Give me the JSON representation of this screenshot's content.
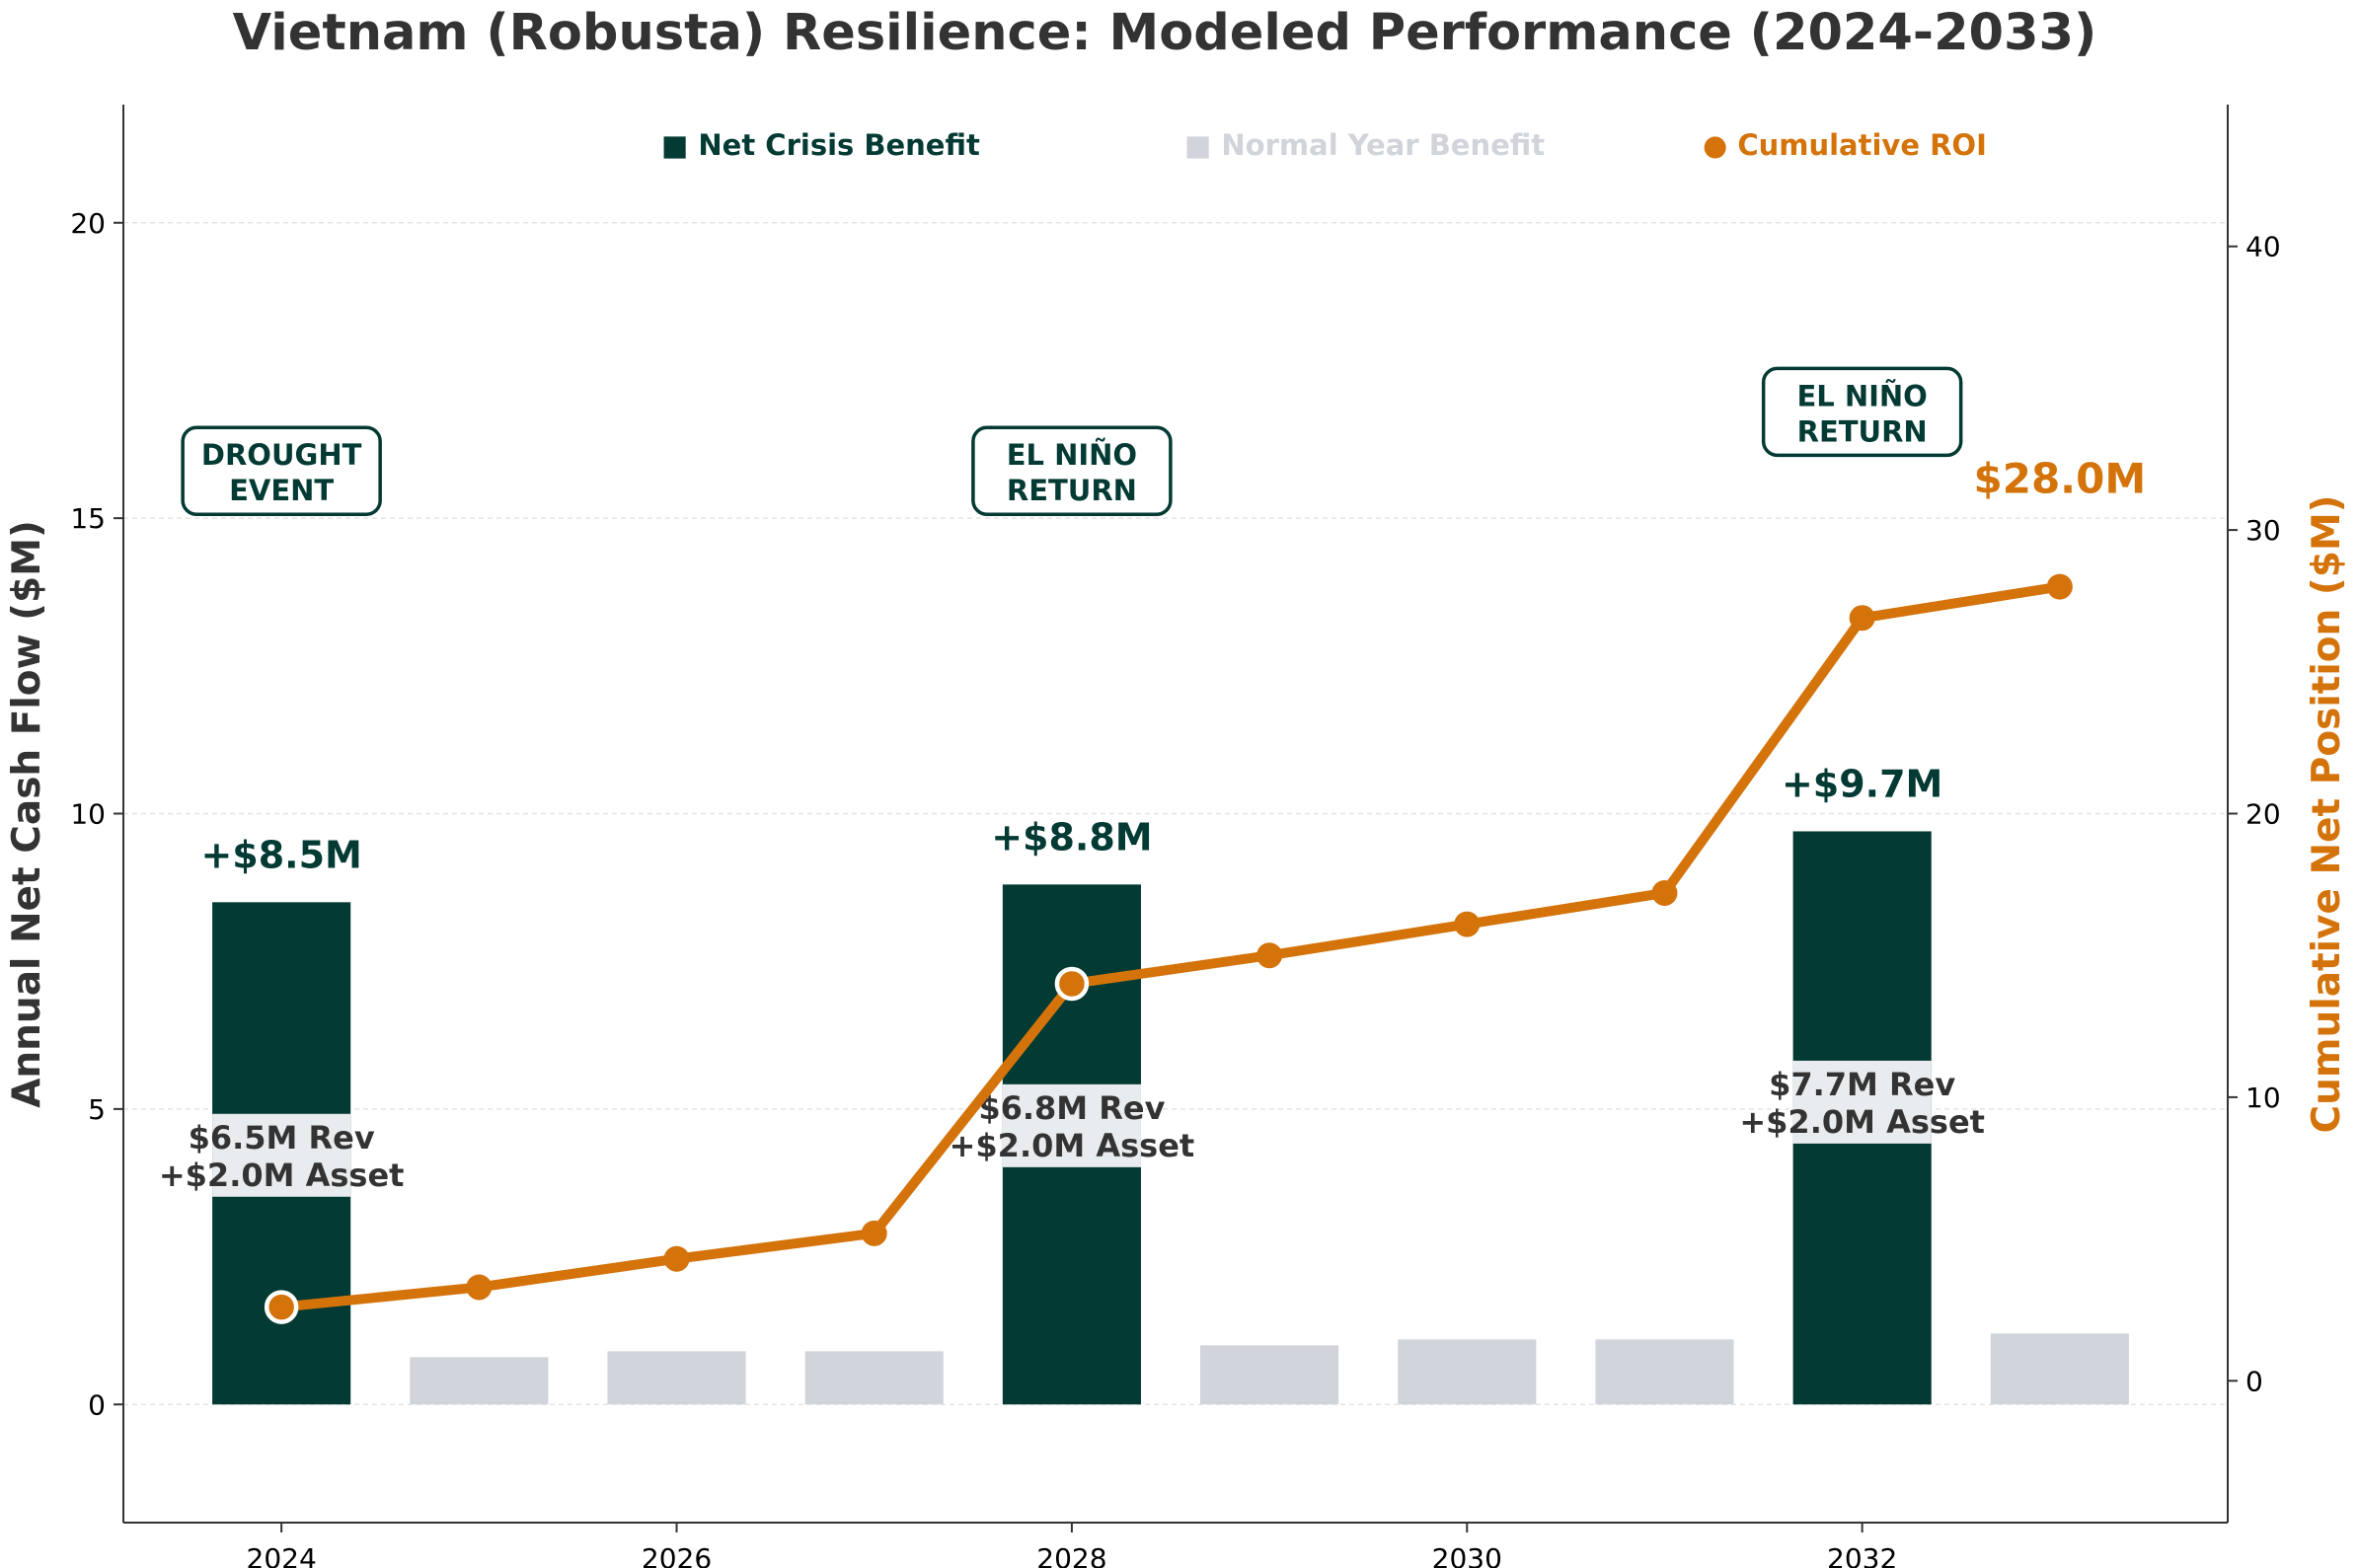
{
  "chart_data": {
    "type": "bar",
    "title": "Vietnam (Robusta) Resilience: Modeled Performance (2024-2033)",
    "ylabel": "Annual Net Cash Flow ($M)",
    "y2label": "Cumulative Net Position ($M)",
    "x": [
      2024,
      2025,
      2026,
      2027,
      2028,
      2029,
      2030,
      2031,
      2032,
      2033
    ],
    "xlim": [
      2023.2,
      2033.85
    ],
    "ylim": [
      -2,
      22
    ],
    "y2lim": [
      -5,
      45
    ],
    "xticks": [
      2024,
      2026,
      2028,
      2030,
      2032
    ],
    "yticks": [
      0,
      5,
      10,
      15,
      20
    ],
    "y2ticks": [
      0,
      10,
      20,
      30,
      40
    ],
    "grid": true,
    "legend_position": "top-center",
    "series": [
      {
        "name": "Net Crisis Benefit",
        "kind": "bar",
        "color": "#033a33",
        "values": [
          8.5,
          null,
          null,
          null,
          8.8,
          null,
          null,
          null,
          9.7,
          null
        ],
        "labels": [
          "+$8.5M",
          null,
          null,
          null,
          "+$8.8M",
          null,
          null,
          null,
          "+$9.7M",
          null
        ],
        "inner_labels": [
          [
            "$6.5M Rev",
            "+$2.0M Asset"
          ],
          null,
          null,
          null,
          [
            "$6.8M Rev",
            "+$2.0M Asset"
          ],
          null,
          null,
          null,
          [
            "$7.7M Rev",
            "+$2.0M Asset"
          ],
          null
        ],
        "inner_label_y": [
          4.2,
          null,
          null,
          null,
          4.7,
          null,
          null,
          null,
          5.1,
          null
        ]
      },
      {
        "name": "Normal Year Benefit",
        "kind": "bar",
        "color": "#d1d4da",
        "values": [
          null,
          0.8,
          0.9,
          0.9,
          null,
          1.0,
          1.1,
          1.1,
          null,
          1.2
        ]
      },
      {
        "name": "Cumulative ROI",
        "kind": "line",
        "axis": "right",
        "color": "#d4730a",
        "values": [
          2.6,
          3.3,
          4.3,
          5.2,
          14.0,
          15.0,
          16.1,
          17.2,
          26.9,
          28.0
        ],
        "highlight": [
          true,
          false,
          false,
          false,
          true,
          false,
          false,
          false,
          false,
          false
        ]
      }
    ],
    "annotations": [
      {
        "x": 2024,
        "y": 15.8,
        "lines": [
          "DROUGHT",
          "EVENT"
        ]
      },
      {
        "x": 2028,
        "y": 15.8,
        "lines": [
          "EL NIÑO",
          "RETURN"
        ]
      },
      {
        "x": 2032,
        "y": 16.8,
        "lines": [
          "EL NIÑO",
          "RETURN"
        ]
      }
    ],
    "final_label": {
      "x": 2033,
      "y2": 31.3,
      "text": "$28.0M"
    }
  },
  "legend": [
    {
      "marker": "■",
      "label": "Net Crisis Benefit",
      "color": "#033a33"
    },
    {
      "marker": "■",
      "label": "Normal Year Benefit",
      "color": "#d1d4da"
    },
    {
      "marker": "●",
      "label": "Cumulative ROI",
      "color": "#d4730a"
    }
  ]
}
